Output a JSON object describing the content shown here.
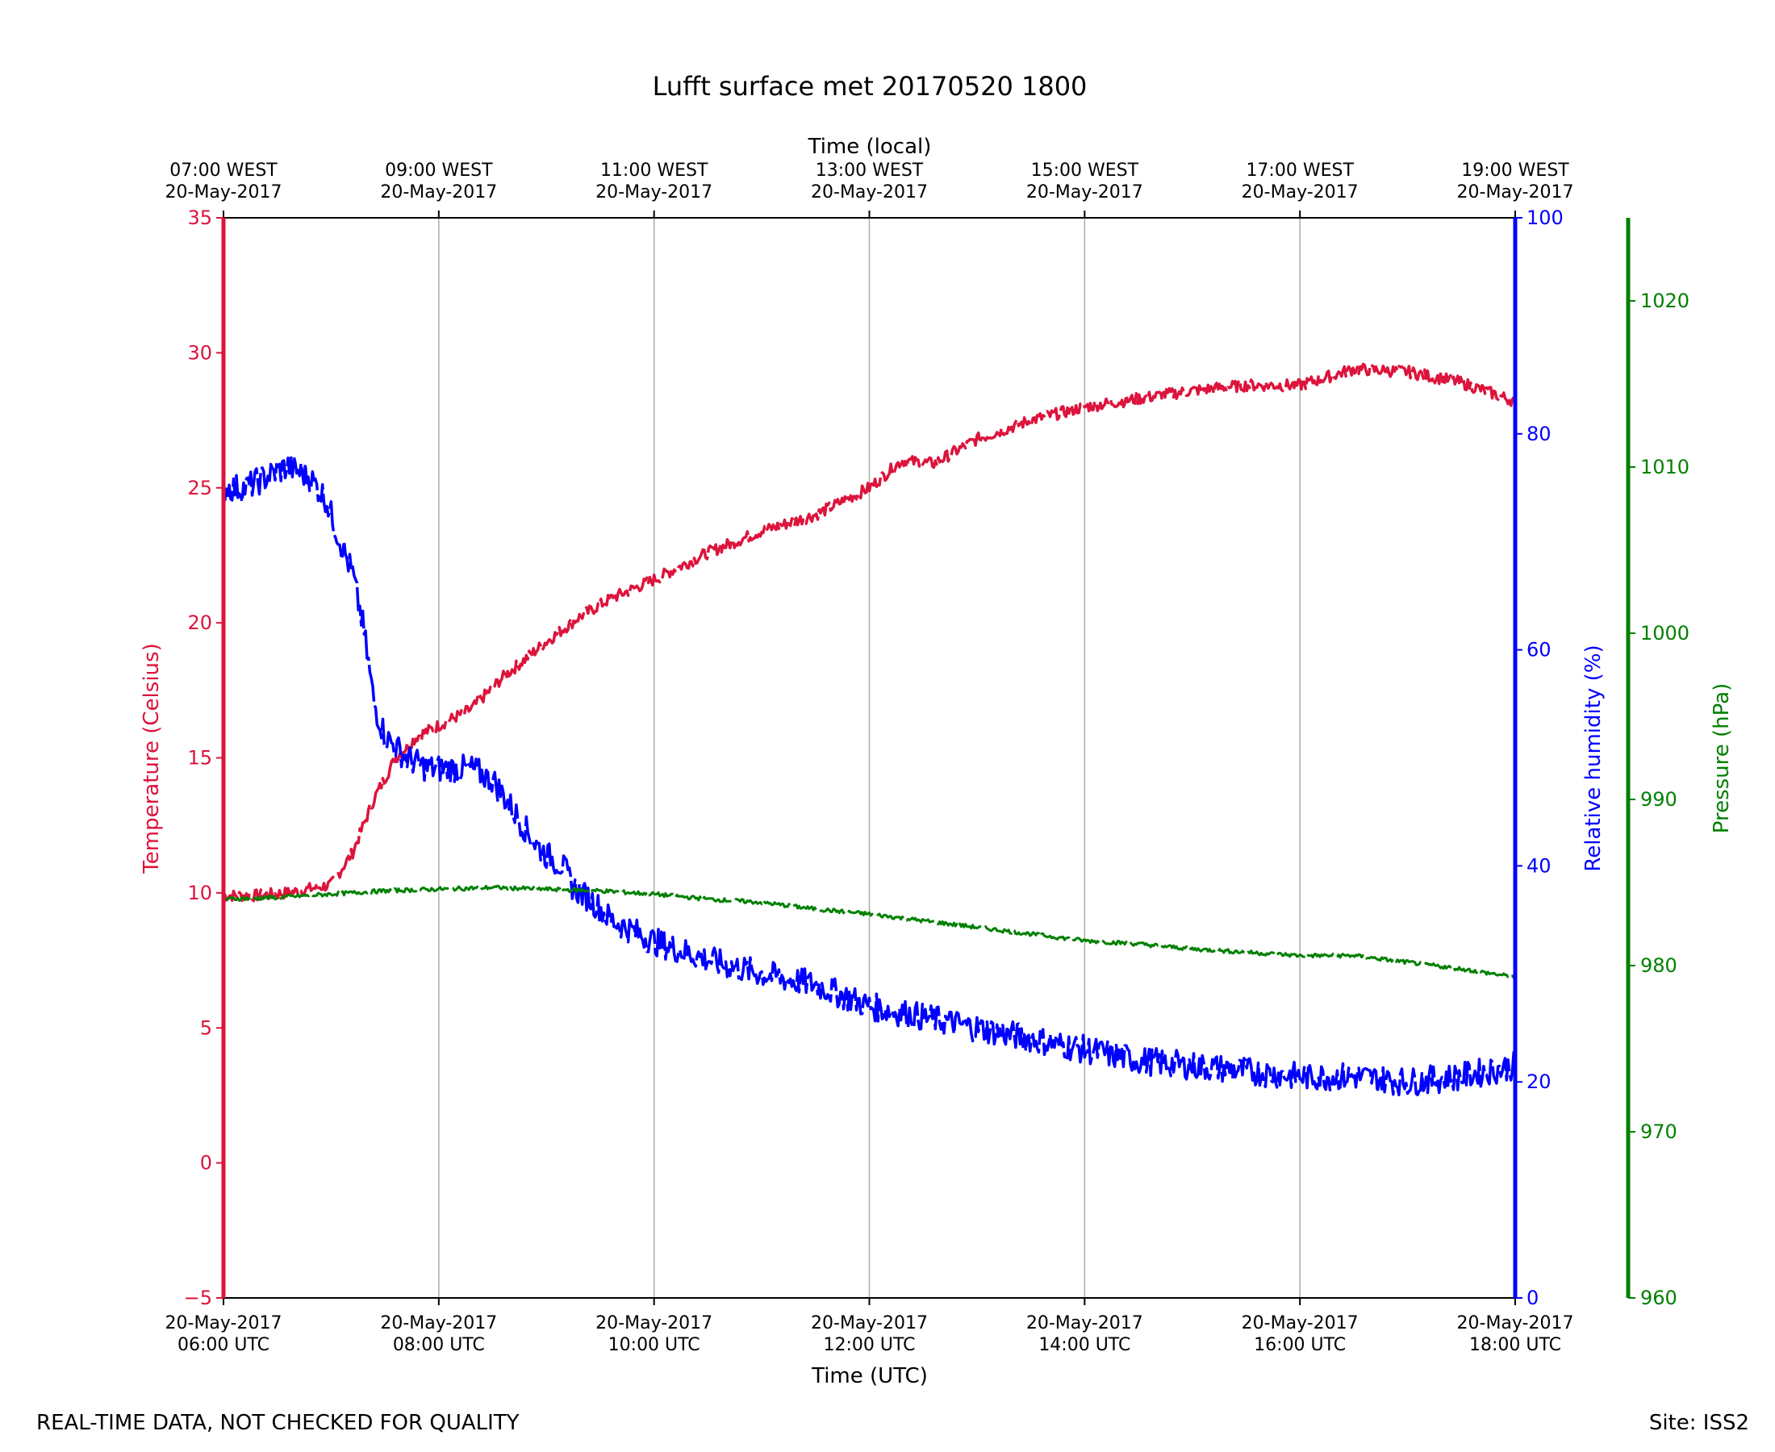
{
  "chart_data": {
    "type": "line",
    "title": "Lufft surface met 20170520 1800",
    "xlabel": "Time (UTC)",
    "xlabel_top": "Time (local)",
    "x_ticks_bottom": [
      {
        "hour": 6,
        "line1": "20-May-2017",
        "line2": "06:00 UTC"
      },
      {
        "hour": 8,
        "line1": "20-May-2017",
        "line2": "08:00 UTC"
      },
      {
        "hour": 10,
        "line1": "20-May-2017",
        "line2": "10:00 UTC"
      },
      {
        "hour": 12,
        "line1": "20-May-2017",
        "line2": "12:00 UTC"
      },
      {
        "hour": 14,
        "line1": "20-May-2017",
        "line2": "14:00 UTC"
      },
      {
        "hour": 16,
        "line1": "20-May-2017",
        "line2": "16:00 UTC"
      },
      {
        "hour": 18,
        "line1": "20-May-2017",
        "line2": "18:00 UTC"
      }
    ],
    "x_ticks_top": [
      {
        "hour": 6,
        "line1": "07:00 WEST",
        "line2": "20-May-2017"
      },
      {
        "hour": 8,
        "line1": "09:00 WEST",
        "line2": "20-May-2017"
      },
      {
        "hour": 10,
        "line1": "11:00 WEST",
        "line2": "20-May-2017"
      },
      {
        "hour": 12,
        "line1": "13:00 WEST",
        "line2": "20-May-2017"
      },
      {
        "hour": 14,
        "line1": "15:00 WEST",
        "line2": "20-May-2017"
      },
      {
        "hour": 16,
        "line1": "17:00 WEST",
        "line2": "20-May-2017"
      },
      {
        "hour": 18,
        "line1": "19:00 WEST",
        "line2": "20-May-2017"
      }
    ],
    "xlim_hours_utc": [
      6,
      18
    ],
    "grid": "vertical",
    "axes": {
      "temperature": {
        "label": "Temperature (Celsius)",
        "color": "#dc143c",
        "ylim": [
          -5,
          35
        ],
        "ticks": [
          -5,
          0,
          5,
          10,
          15,
          20,
          25,
          30,
          35
        ],
        "side": "left"
      },
      "humidity": {
        "label": "Relative humidity (%)",
        "color": "#0000ff",
        "ylim": [
          0,
          100
        ],
        "ticks": [
          0,
          20,
          40,
          60,
          80,
          100
        ],
        "side": "right"
      },
      "pressure": {
        "label": "Pressure (hPa)",
        "color": "#008000",
        "ylim": [
          960,
          1025
        ],
        "ticks": [
          960,
          970,
          980,
          990,
          1000,
          1010,
          1020
        ],
        "side": "right-outer"
      }
    },
    "series": [
      {
        "name": "Temperature (Celsius)",
        "axis": "temperature",
        "color": "#dc143c",
        "x": [
          6.0,
          6.3,
          6.6,
          7.0,
          7.2,
          7.4,
          7.6,
          7.8,
          8.0,
          8.3,
          8.6,
          9.0,
          9.3,
          9.6,
          10.0,
          10.5,
          11.0,
          11.5,
          12.0,
          12.3,
          12.6,
          13.0,
          13.5,
          14.0,
          14.5,
          15.0,
          15.5,
          16.0,
          16.5,
          17.0,
          17.5,
          18.0
        ],
        "y": [
          9.9,
          9.9,
          10.0,
          10.3,
          11.5,
          13.5,
          15.0,
          15.8,
          16.2,
          16.8,
          18.0,
          19.3,
          20.2,
          20.9,
          21.6,
          22.6,
          23.4,
          24.0,
          25.0,
          26.0,
          25.9,
          26.8,
          27.5,
          28.0,
          28.3,
          28.6,
          28.8,
          28.8,
          29.4,
          29.3,
          28.9,
          28.2
        ]
      },
      {
        "name": "Relative humidity (%)",
        "axis": "humidity",
        "color": "#0000ff",
        "x": [
          6.0,
          6.2,
          6.4,
          6.6,
          6.8,
          6.95,
          7.05,
          7.2,
          7.3,
          7.4,
          7.5,
          7.7,
          7.9,
          8.1,
          8.3,
          8.5,
          8.7,
          8.9,
          9.0,
          9.15,
          9.25,
          9.4,
          9.6,
          9.8,
          10.0,
          10.3,
          10.6,
          11.0,
          11.5,
          12.0,
          12.5,
          13.0,
          13.5,
          14.0,
          14.5,
          15.0,
          15.5,
          16.0,
          16.5,
          17.0,
          17.5,
          18.0
        ],
        "y": [
          75,
          75,
          76,
          77,
          76,
          74,
          71,
          67,
          62,
          55,
          52,
          50,
          49,
          49,
          49,
          48,
          45,
          42,
          41,
          40,
          38,
          37,
          35,
          34,
          33,
          32,
          31,
          30,
          29,
          27,
          26,
          25,
          24,
          23,
          22,
          21.5,
          21,
          20.5,
          20.5,
          20,
          20.5,
          21.5
        ]
      },
      {
        "name": "Pressure (hPa)",
        "axis": "pressure",
        "color": "#008000",
        "x": [
          6.0,
          6.5,
          7.0,
          7.5,
          8.0,
          8.5,
          9.0,
          9.5,
          10.0,
          10.5,
          11.0,
          11.5,
          12.0,
          12.5,
          13.0,
          13.5,
          14.0,
          14.5,
          15.0,
          15.5,
          16.0,
          16.5,
          17.0,
          17.5,
          18.0
        ],
        "y": [
          984.0,
          984.1,
          984.3,
          984.5,
          984.6,
          984.7,
          984.6,
          984.5,
          984.3,
          984.0,
          983.8,
          983.4,
          983.1,
          982.7,
          982.3,
          981.9,
          981.5,
          981.3,
          981.0,
          980.8,
          980.6,
          980.6,
          980.2,
          979.8,
          979.3
        ]
      }
    ]
  },
  "footer": {
    "left_note": "REAL-TIME DATA, NOT CHECKED FOR QUALITY",
    "site": "Site: ISS2"
  }
}
